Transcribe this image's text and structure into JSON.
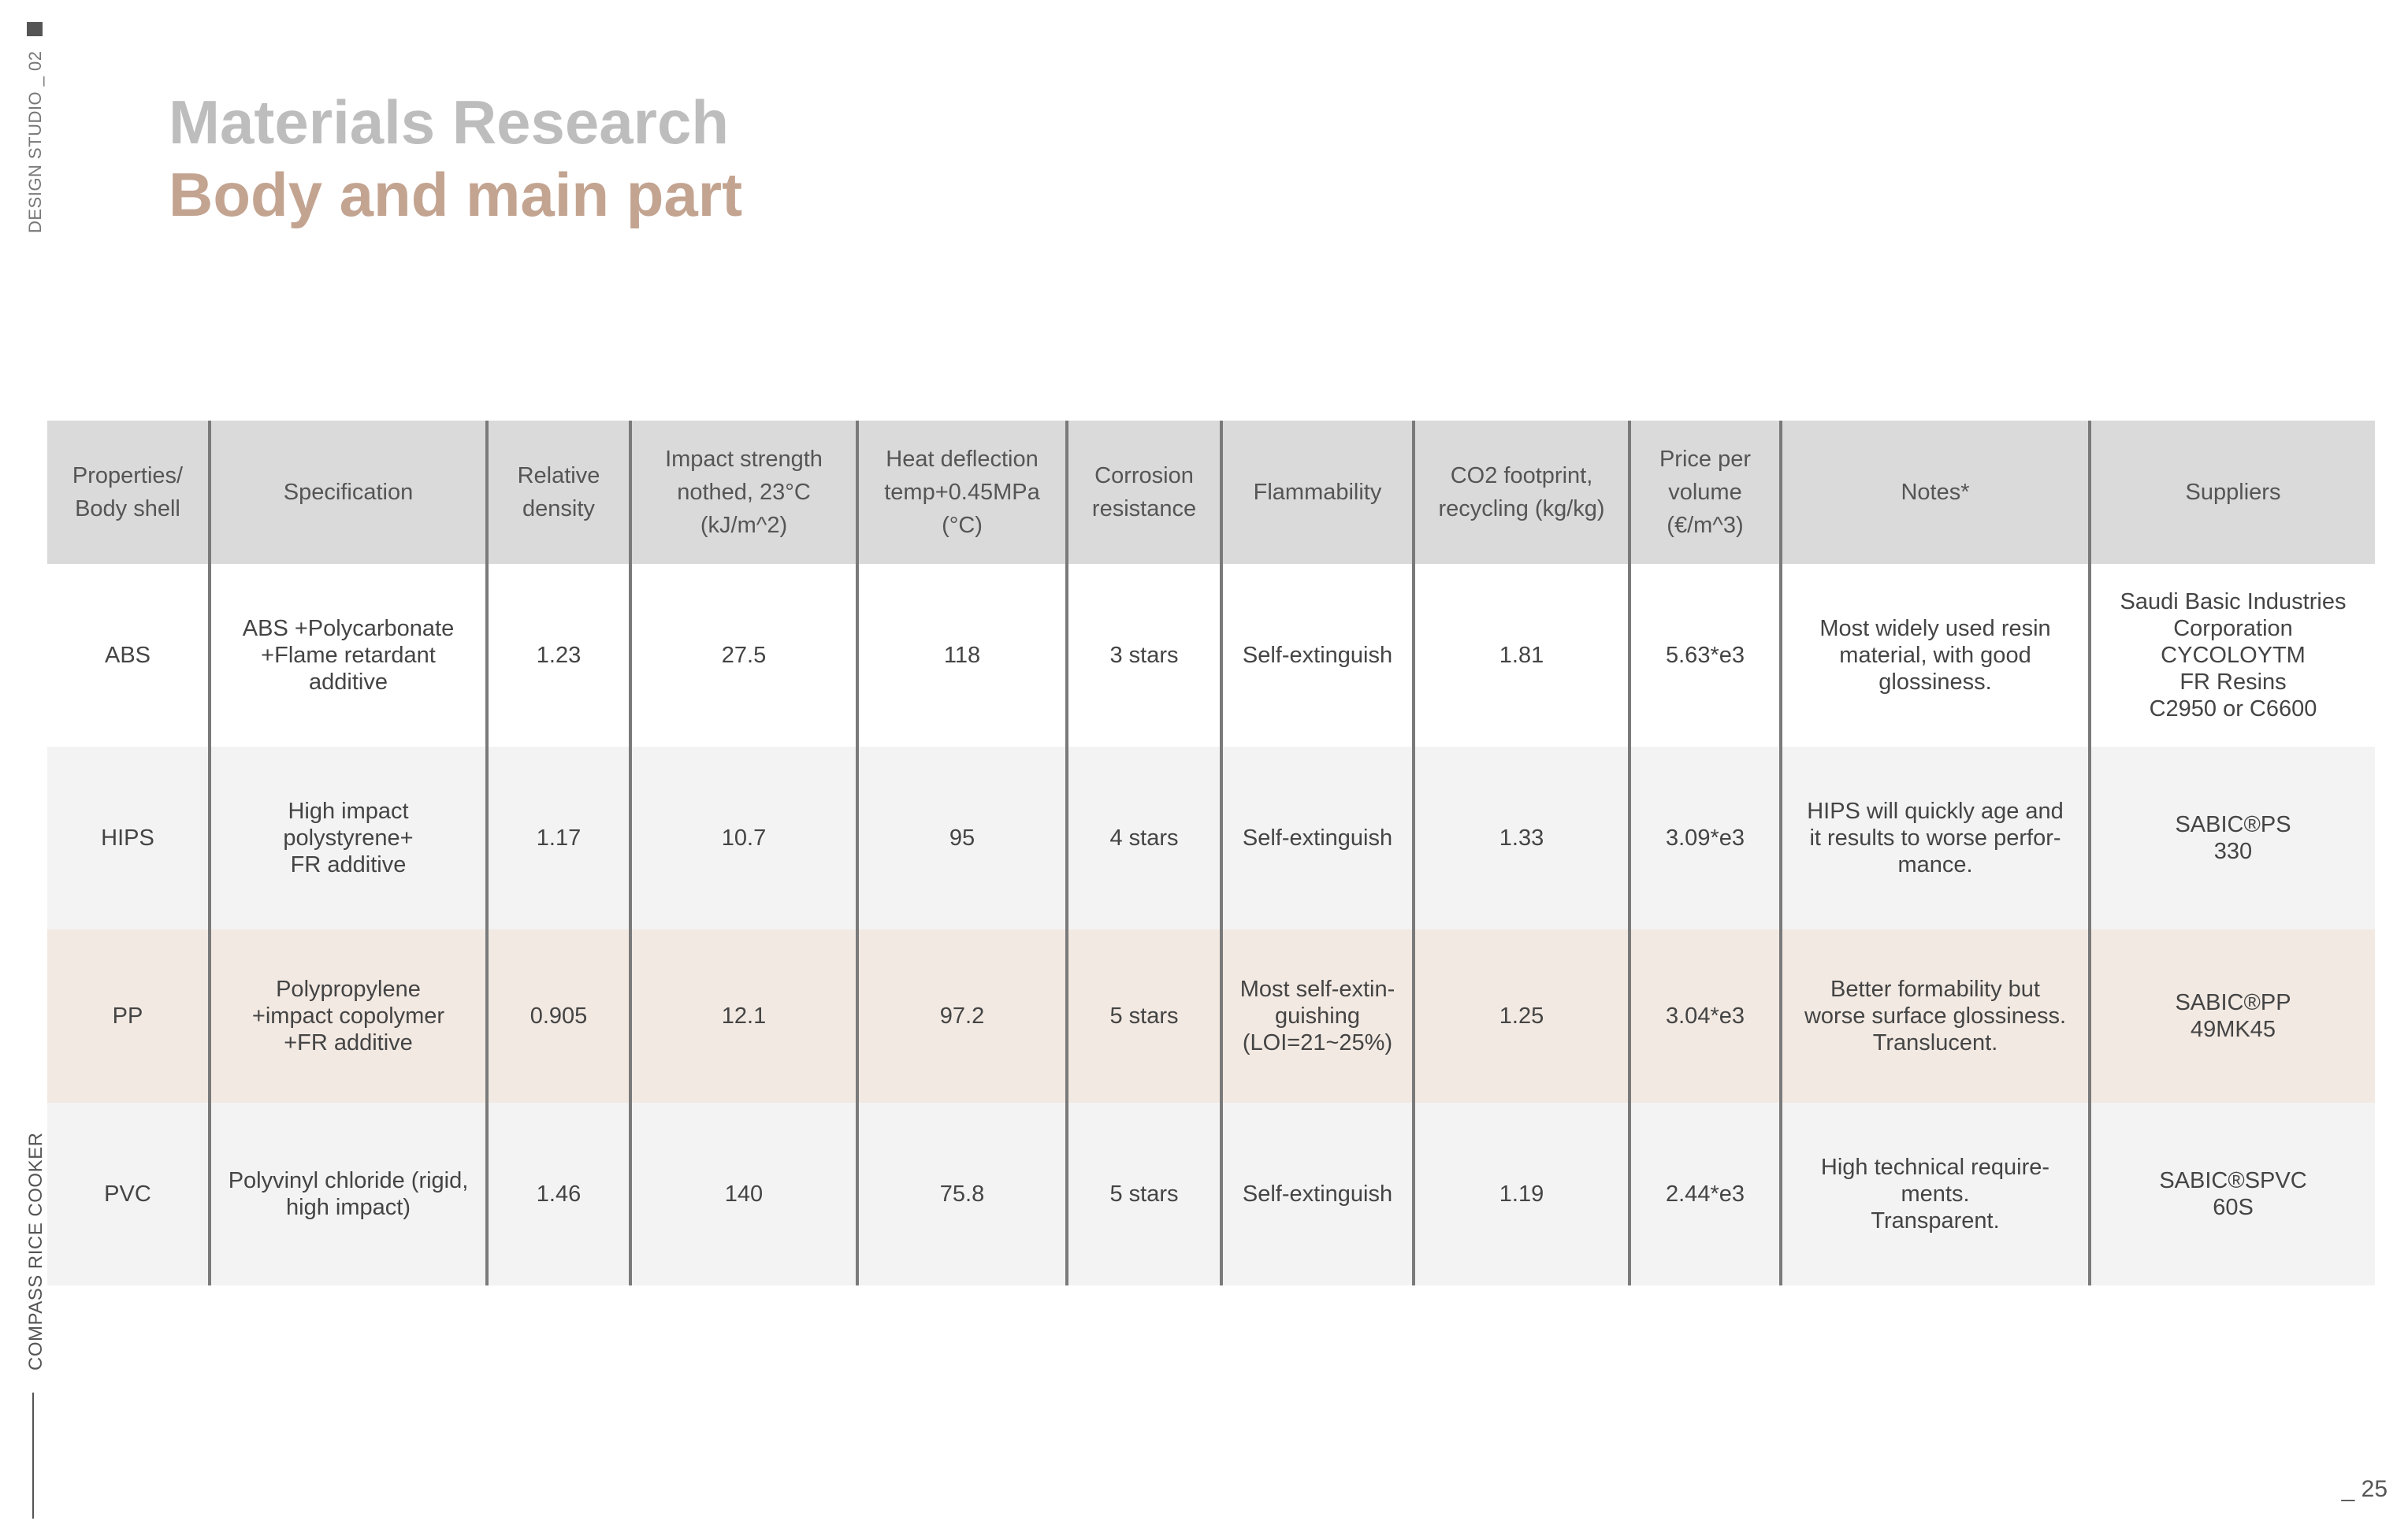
{
  "side": {
    "top_label": "DESIGN STUDIO _ 02",
    "bottom_label": "COMPASS RICE COOKER"
  },
  "header": {
    "title": "Materials Research",
    "subtitle": "Body and main part"
  },
  "table": {
    "headers": [
      "Properties/\nBody shell",
      "Specification",
      "Relative\ndensity",
      "Impact strength\nnothed, 23°C\n(kJ/m^2)",
      "Heat deflection\ntemp+0.45MPa\n(°C)",
      "Corrosion\nresistance",
      "Flammability",
      "CO2 footprint,\nrecycling (kg/kg)",
      "Price per\nvolume\n(€/m^3)",
      "Notes*",
      "Suppliers"
    ],
    "rows": [
      {
        "material": "ABS",
        "specification": "ABS +Polycarbonate\n+Flame retardant\nadditive",
        "density": "1.23",
        "impact": "27.5",
        "heat": "118",
        "corrosion": "3 stars",
        "flammability": "Self-extinguish",
        "co2": "1.81",
        "price": "5.63*e3",
        "notes": "Most widely used resin\nmaterial, with good\nglossiness.",
        "suppliers": "Saudi Basic Industries\nCorporation\nCYCOLOYTM\nFR Resins\nC2950 or C6600"
      },
      {
        "material": "HIPS",
        "specification": "High impact\npolystyrene+\nFR additive",
        "density": "1.17",
        "impact": "10.7",
        "heat": "95",
        "corrosion": "4 stars",
        "flammability": "Self-extinguish",
        "co2": "1.33",
        "price": "3.09*e3",
        "notes": "HIPS will quickly age and\nit results to worse perfor-\nmance.",
        "suppliers": "SABIC®PS\n330"
      },
      {
        "material": "PP",
        "specification": "Polypropylene\n+impact copolymer\n+FR additive",
        "density": "0.905",
        "impact": "12.1",
        "heat": "97.2",
        "corrosion": "5 stars",
        "flammability": "Most self-extin-\nguishing\n(LOI=21~25%)",
        "co2": "1.25",
        "price": "3.04*e3",
        "notes": "Better formability but\nworse surface glossiness.\nTranslucent.",
        "suppliers": "SABIC®PP\n49MK45"
      },
      {
        "material": "PVC",
        "specification": "Polyvinyl chloride (rigid,\nhigh impact)",
        "density": "1.46",
        "impact": "140",
        "heat": "75.8",
        "corrosion": "5 stars",
        "flammability": "Self-extinguish",
        "co2": "1.19",
        "price": "2.44*e3",
        "notes": "High technical require-\nments.\nTransparent.",
        "suppliers": "SABIC®SPVC\n60S"
      }
    ]
  },
  "footer": {
    "page_number": "_ 25"
  }
}
